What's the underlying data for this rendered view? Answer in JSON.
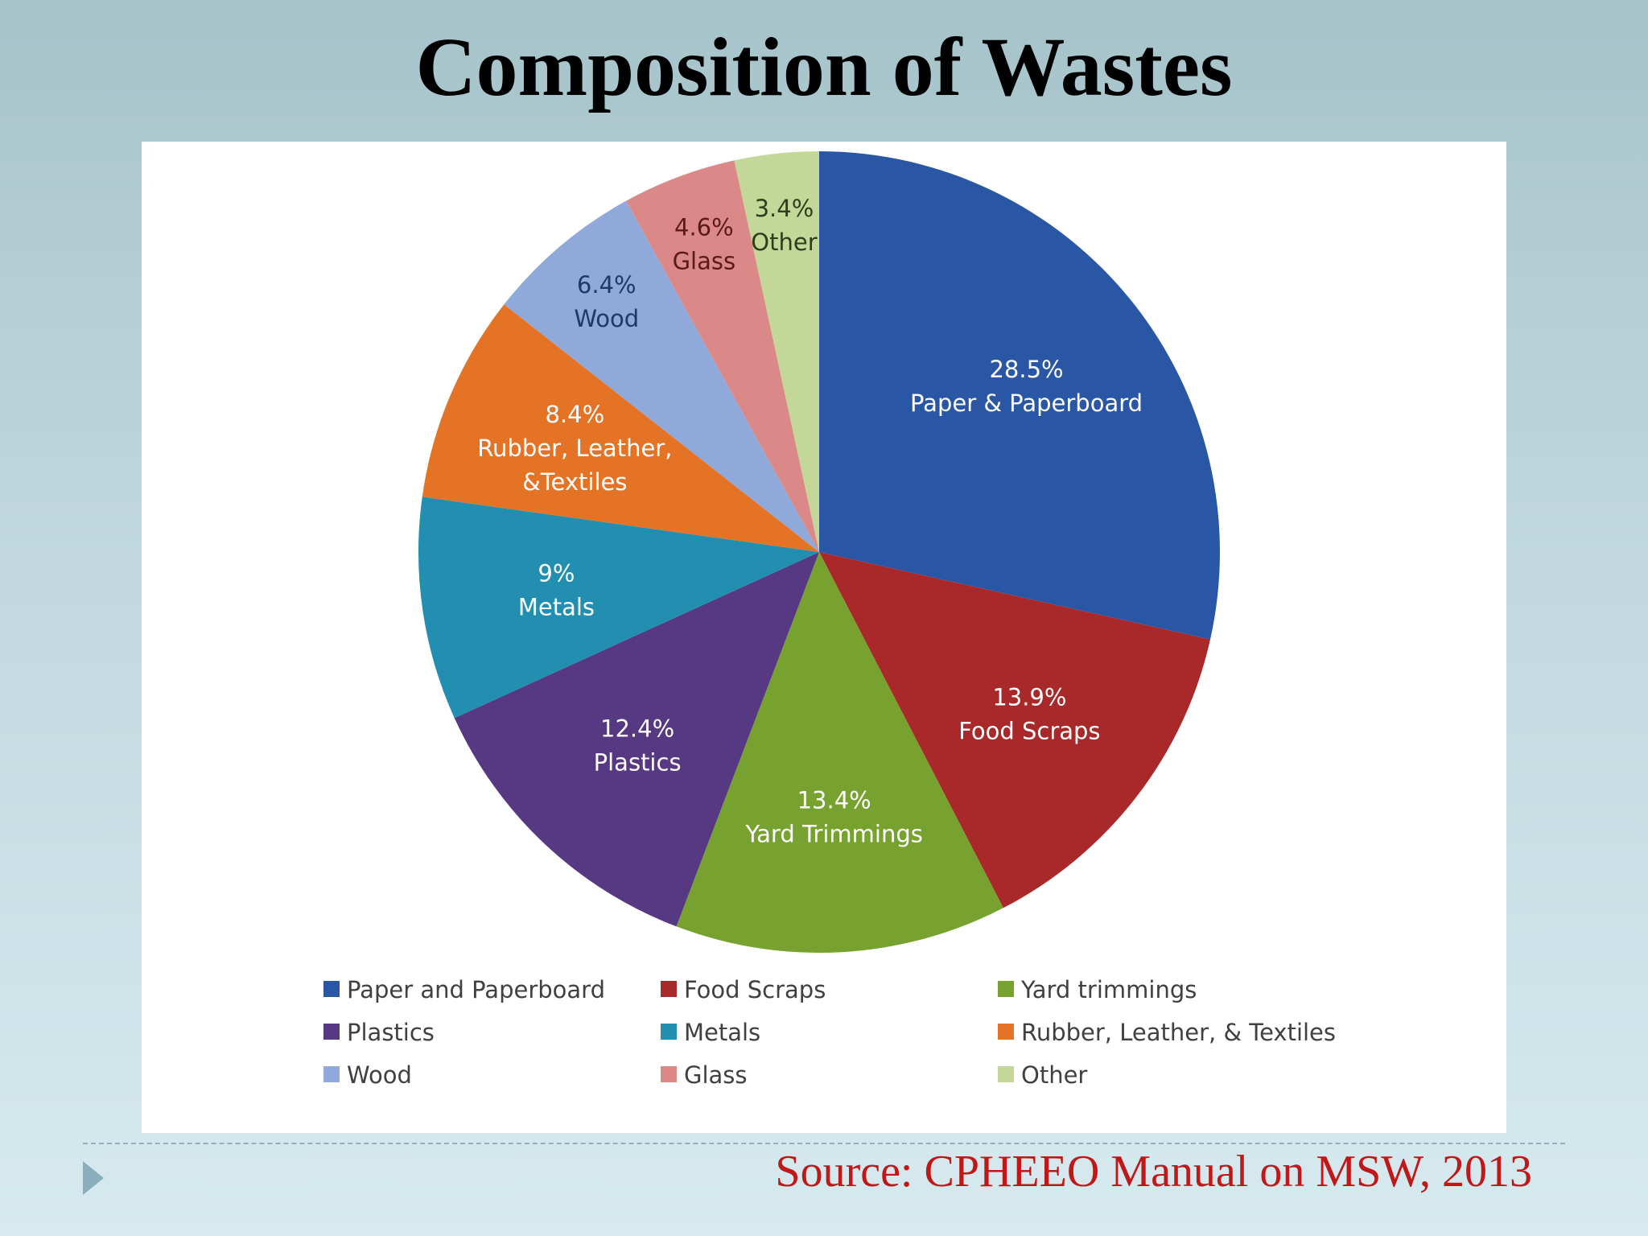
{
  "slide": {
    "title": "Composition of Wastes",
    "source": "Source: CPHEEO Manual on MSW, 2013"
  },
  "chart_data": {
    "type": "pie",
    "title": "",
    "unit": "%",
    "legend_position": "bottom",
    "slices": [
      {
        "name": "Paper and Paperboard",
        "value": 28.5,
        "label_value": "28.5%",
        "label_name": [
          "Paper & Paperboard"
        ],
        "color": "#2a57a5",
        "label_color": "#ffffff"
      },
      {
        "name": "Food Scraps",
        "value": 13.9,
        "label_value": "13.9%",
        "label_name": [
          "Food Scraps"
        ],
        "color": "#a92829",
        "label_color": "#ffffff"
      },
      {
        "name": "Yard trimmings",
        "value": 13.4,
        "label_value": "13.4%",
        "label_name": [
          "Yard Trimmings"
        ],
        "color": "#78a22f",
        "label_color": "#ffffff"
      },
      {
        "name": "Plastics",
        "value": 12.4,
        "label_value": "12.4%",
        "label_name": [
          "Plastics"
        ],
        "color": "#573882",
        "label_color": "#ffffff"
      },
      {
        "name": "Metals",
        "value": 9,
        "label_value": "9%",
        "label_name": [
          "Metals"
        ],
        "color": "#238fb0",
        "label_color": "#ffffff"
      },
      {
        "name": "Rubber, Leather, & Textiles",
        "value": 8.4,
        "label_value": "8.4%",
        "label_name": [
          "Rubber, Leather,",
          "&Textiles"
        ],
        "color": "#e57325",
        "label_color": "#ffffff"
      },
      {
        "name": "Wood",
        "value": 6.4,
        "label_value": "6.4%",
        "label_name": [
          "Wood"
        ],
        "color": "#8ea9da",
        "label_color": "#1f3864"
      },
      {
        "name": "Glass",
        "value": 4.6,
        "label_value": "4.6%",
        "label_name": [
          "Glass"
        ],
        "color": "#db8888",
        "label_color": "#5a1a1a"
      },
      {
        "name": "Other",
        "value": 3.4,
        "label_value": "3.4%",
        "label_name": [
          "Other"
        ],
        "color": "#c3d898",
        "label_color": "#2f3d1a"
      }
    ],
    "legend_order": [
      "Paper and Paperboard",
      "Food Scraps",
      "Yard trimmings",
      "Plastics",
      "Metals",
      "Rubber, Leather, & Textiles",
      "Wood",
      "Glass",
      "Other"
    ]
  }
}
